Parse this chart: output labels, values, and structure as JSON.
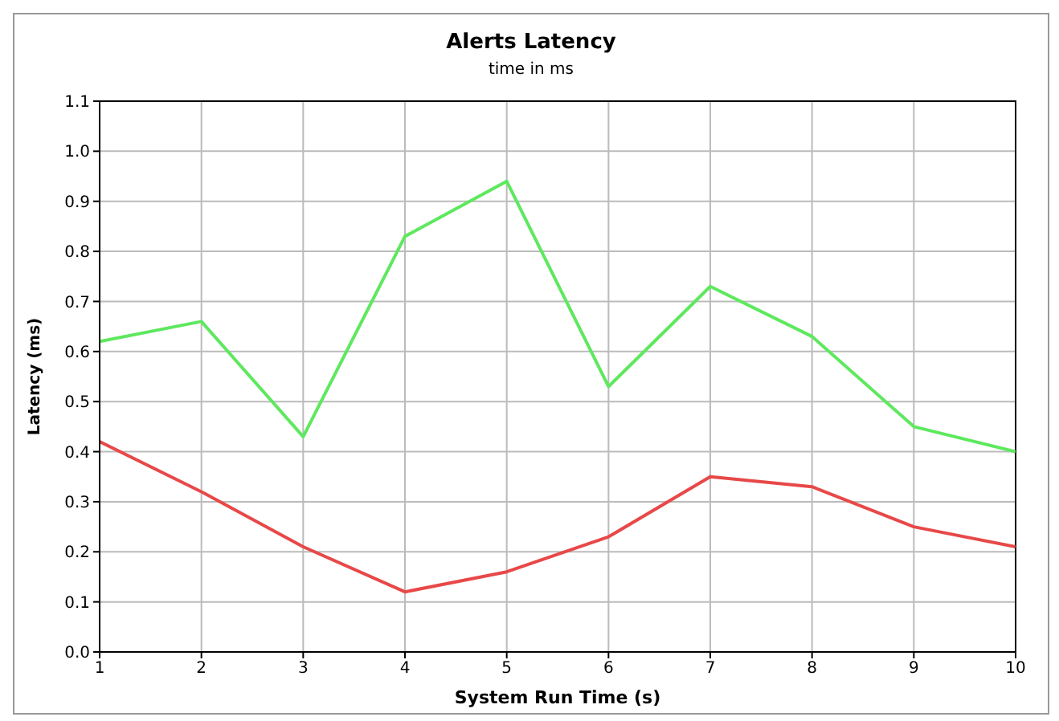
{
  "chart_data": {
    "type": "line",
    "title": "Alerts Latency",
    "subtitle": "time in ms",
    "xlabel": "System Run Time (s)",
    "ylabel": "Latency (ms)",
    "x": [
      1,
      2,
      3,
      4,
      5,
      6,
      7,
      8,
      9,
      10
    ],
    "series": [
      {
        "color": "#5ee85e",
        "values": [
          0.62,
          0.66,
          0.43,
          0.83,
          0.94,
          0.53,
          0.73,
          0.63,
          0.45,
          0.4
        ]
      },
      {
        "color": "#e84848",
        "values": [
          0.42,
          0.32,
          0.21,
          0.12,
          0.16,
          0.23,
          0.35,
          0.33,
          0.25,
          0.21
        ]
      }
    ],
    "xlim": [
      1,
      10
    ],
    "xticks": [
      1,
      2,
      3,
      4,
      5,
      6,
      7,
      8,
      9,
      10
    ],
    "ylim": [
      0,
      1.1
    ],
    "yticks": [
      {
        "value": 0,
        "label": "0.0"
      },
      0.1,
      0.2,
      0.3,
      0.4,
      0.5,
      0.6,
      0.7,
      0.8,
      0.9,
      {
        "value": 1,
        "label": "1.0"
      },
      1.1
    ],
    "grid": true,
    "legend": false,
    "marker": "none",
    "line_style": "solid"
  }
}
